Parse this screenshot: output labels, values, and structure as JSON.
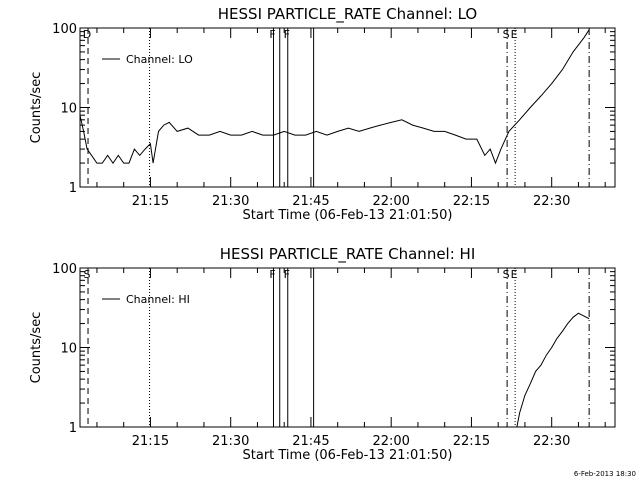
{
  "footer": {
    "timestamp": "6-Feb-2013 18:30"
  },
  "chart_data": [
    {
      "type": "line",
      "title": "HESSI PARTICLE_RATE Channel: LO",
      "xlabel": "Start Time (06-Feb-13 21:01:50)",
      "ylabel": "Counts/sec",
      "yscale": "log",
      "ylim": [
        1,
        100
      ],
      "xlim": [
        "21:01:50",
        "22:41:50"
      ],
      "x_ticks": [
        "21:15",
        "21:30",
        "21:45",
        "22:00",
        "22:15",
        "22:30"
      ],
      "y_ticks": [
        "1",
        "10",
        "100"
      ],
      "legend": {
        "entries": [
          "Channel: LO"
        ],
        "position": "top-left"
      },
      "series": [
        {
          "name": "Channel: LO",
          "x": [
            "21:01:50",
            "21:02:30",
            "21:03:10",
            "21:04:00",
            "21:05:00",
            "21:06:00",
            "21:07:00",
            "21:08:00",
            "21:09:00",
            "21:10:00",
            "21:11:00",
            "21:12:00",
            "21:13:00",
            "21:14:00",
            "21:15:00",
            "21:15:30",
            "21:16:30",
            "21:17:30",
            "21:18:30",
            "21:20:00",
            "21:22:00",
            "21:24:00",
            "21:26:00",
            "21:28:00",
            "21:30:00",
            "21:32:00",
            "21:34:00",
            "21:36:00",
            "21:38:00",
            "21:40:00",
            "21:42:00",
            "21:44:00",
            "21:46:00",
            "21:48:00",
            "21:50:00",
            "21:52:00",
            "21:54:00",
            "21:56:00",
            "21:58:00",
            "22:00:00",
            "22:02:00",
            "22:04:00",
            "22:06:00",
            "22:08:00",
            "22:10:00",
            "22:12:00",
            "22:14:00",
            "22:16:00",
            "22:17:30",
            "22:18:30",
            "22:19:30",
            "22:20:30",
            "22:22:00",
            "22:24:00",
            "22:26:00",
            "22:28:00",
            "22:30:00",
            "22:32:00",
            "22:34:00",
            "22:36:00",
            "22:37:00"
          ],
          "y": [
            8,
            5,
            3,
            2.5,
            2,
            2,
            2.5,
            2,
            2.5,
            2,
            2,
            3,
            2.5,
            3,
            3.5,
            2,
            5,
            6,
            6.5,
            5,
            5.5,
            4.5,
            4.5,
            5,
            4.5,
            4.5,
            5,
            4.5,
            4.5,
            5,
            4.5,
            4.5,
            5,
            4.5,
            5,
            5.5,
            5,
            5.5,
            6,
            6.5,
            7,
            6,
            5.5,
            5,
            5,
            4.5,
            4,
            4,
            2.5,
            3,
            2,
            3,
            5,
            7,
            10,
            14,
            20,
            30,
            50,
            75,
            95
          ]
        }
      ],
      "markers": [
        {
          "label": "D",
          "time": "21:03:20",
          "style": "dashed"
        },
        {
          "label": "",
          "time": "21:14:50",
          "style": "dotted"
        },
        {
          "label": "F",
          "time": "21:38:00",
          "style": "solid"
        },
        {
          "label": "",
          "time": "21:39:10",
          "style": "solid"
        },
        {
          "label": "F",
          "time": "21:40:40",
          "style": "solid"
        },
        {
          "label": "",
          "time": "21:45:30",
          "style": "solid"
        },
        {
          "label": "S",
          "time": "22:21:40",
          "style": "dashdot"
        },
        {
          "label": "E",
          "time": "22:23:10",
          "style": "dotted"
        },
        {
          "label": "",
          "time": "22:37:00",
          "style": "dashdot"
        }
      ]
    },
    {
      "type": "line",
      "title": "HESSI PARTICLE_RATE Channel: HI",
      "xlabel": "Start Time (06-Feb-13 21:01:50)",
      "ylabel": "Counts/sec",
      "yscale": "log",
      "ylim": [
        1,
        100
      ],
      "xlim": [
        "21:01:50",
        "22:41:50"
      ],
      "x_ticks": [
        "21:15",
        "21:30",
        "21:45",
        "22:00",
        "22:15",
        "22:30"
      ],
      "y_ticks": [
        "1",
        "10",
        "100"
      ],
      "legend": {
        "entries": [
          "Channel: HI"
        ],
        "position": "top-left"
      },
      "series": [
        {
          "name": "Channel: HI",
          "x": [
            "22:23:30",
            "22:24:00",
            "22:25:00",
            "22:26:00",
            "22:27:00",
            "22:28:00",
            "22:29:00",
            "22:30:00",
            "22:31:00",
            "22:32:00",
            "22:33:00",
            "22:34:00",
            "22:35:00",
            "22:36:00",
            "22:37:00"
          ],
          "y": [
            1,
            1.5,
            2.5,
            3.5,
            5,
            6,
            8,
            10,
            13,
            16,
            20,
            24,
            27,
            25,
            23
          ]
        }
      ],
      "markers": [
        {
          "label": "S",
          "time": "21:03:20",
          "style": "dashed"
        },
        {
          "label": "",
          "time": "21:14:50",
          "style": "dotted"
        },
        {
          "label": "F",
          "time": "21:38:00",
          "style": "solid"
        },
        {
          "label": "",
          "time": "21:39:10",
          "style": "solid"
        },
        {
          "label": "F",
          "time": "21:40:40",
          "style": "solid"
        },
        {
          "label": "",
          "time": "21:45:30",
          "style": "solid"
        },
        {
          "label": "S",
          "time": "22:21:40",
          "style": "dashdot"
        },
        {
          "label": "E",
          "time": "22:23:10",
          "style": "dotted"
        },
        {
          "label": "",
          "time": "22:37:00",
          "style": "dashdot"
        }
      ]
    }
  ]
}
